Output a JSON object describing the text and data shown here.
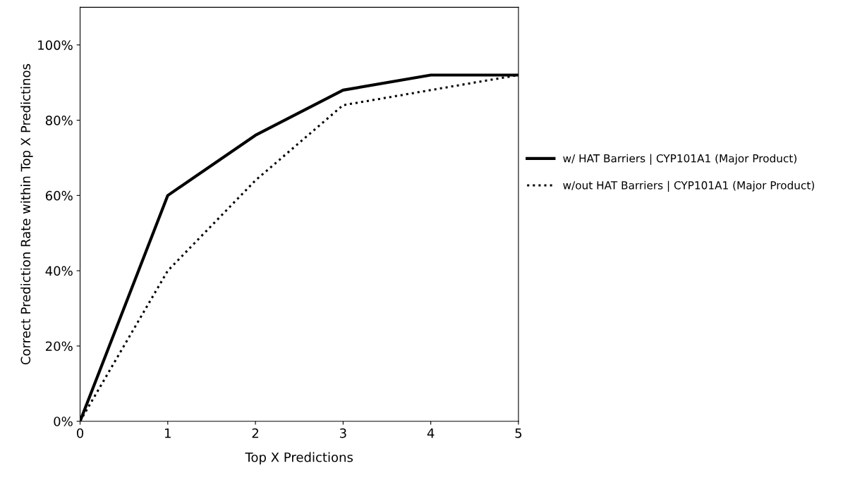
{
  "chart_data": {
    "type": "line",
    "xlabel": "Top X Predictions",
    "ylabel": "Correct Prediction Rate within Top X Predictinos",
    "x": [
      0,
      1,
      2,
      3,
      4,
      5
    ],
    "series": [
      {
        "name": "w/ HAT Barriers | CYP101A1 (Major Product)",
        "color": "#000000",
        "line_style": "solid",
        "values": [
          0,
          60,
          76,
          88,
          92,
          92
        ]
      },
      {
        "name": "w/out HAT Barriers | CYP101A1 (Major Product)",
        "color": "#000000",
        "line_style": "dotted",
        "values": [
          0,
          40,
          64,
          84,
          88,
          92
        ]
      }
    ],
    "xlim": [
      0,
      5
    ],
    "xticks": [
      0,
      1,
      2,
      3,
      4,
      5
    ],
    "ylim": [
      0,
      110
    ],
    "yticks": [
      {
        "value": 0,
        "label": "0%"
      },
      {
        "value": 20,
        "label": "20%"
      },
      {
        "value": 40,
        "label": "40%"
      },
      {
        "value": 60,
        "label": "60%"
      },
      {
        "value": 80,
        "label": "80%"
      },
      {
        "value": 100,
        "label": "100%"
      }
    ],
    "grid": false,
    "legend": "right",
    "marker": "none"
  }
}
